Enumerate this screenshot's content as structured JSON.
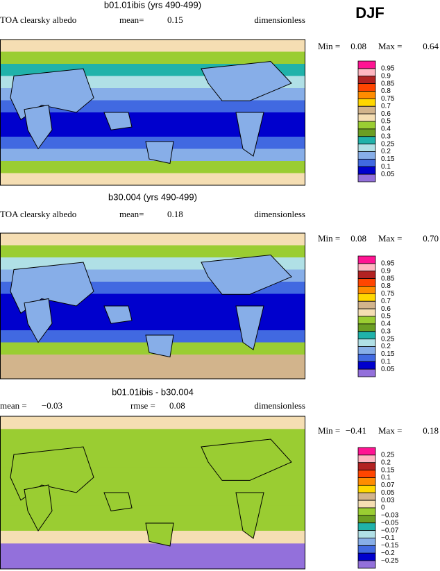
{
  "season": "DJF",
  "colorbar_colors": [
    "#ff1493",
    "#ffb6c1",
    "#b22222",
    "#ff4500",
    "#ff8c00",
    "#ffd700",
    "#d2b48c",
    "#f5deb3",
    "#9acd32",
    "#6b9e23",
    "#20b2aa",
    "#b0e0e6",
    "#87aee8",
    "#4169e1",
    "#0000cd",
    "#9370db"
  ],
  "panels": [
    {
      "title": "b01.01ibis (yrs 490-499)",
      "variable": "TOA clearsky albedo",
      "stat_label": "mean=",
      "stat": "0.15",
      "units": "dimensionless",
      "min_label": "Min =",
      "min": "0.08",
      "max_label": "Max =",
      "max": "0.64",
      "colorbar_labels": [
        "0.95",
        "0.9",
        "0.85",
        "0.8",
        "0.75",
        "0.7",
        "0.6",
        "0.5",
        "0.4",
        "0.3",
        "0.25",
        "0.2",
        "0.15",
        "0.1",
        "0.05"
      ]
    },
    {
      "title": "b30.004 (yrs 490-499)",
      "variable": "TOA clearsky albedo",
      "stat_label": "mean=",
      "stat": "0.18",
      "units": "dimensionless",
      "min_label": "Min =",
      "min": "0.08",
      "max_label": "Max =",
      "max": "0.70",
      "colorbar_labels": [
        "0.95",
        "0.9",
        "0.85",
        "0.8",
        "0.75",
        "0.7",
        "0.6",
        "0.5",
        "0.4",
        "0.3",
        "0.25",
        "0.2",
        "0.15",
        "0.1",
        "0.05"
      ]
    },
    {
      "title": "b01.01ibis - b30.004",
      "variable": "mean =",
      "stat_label": "rmse =",
      "stat": "0.08",
      "variable_value": "−0.03",
      "units": "dimensionless",
      "min_label": "Min =",
      "min": "−0.41",
      "max_label": "Max =",
      "max": "0.18",
      "colorbar_labels": [
        "0.25",
        "0.2",
        "0.15",
        "0.1",
        "0.07",
        "0.05",
        "0.03",
        "0",
        "−0.03",
        "−0.05",
        "−0.07",
        "−0.1",
        "−0.15",
        "−0.2",
        "−0.25"
      ]
    }
  ]
}
